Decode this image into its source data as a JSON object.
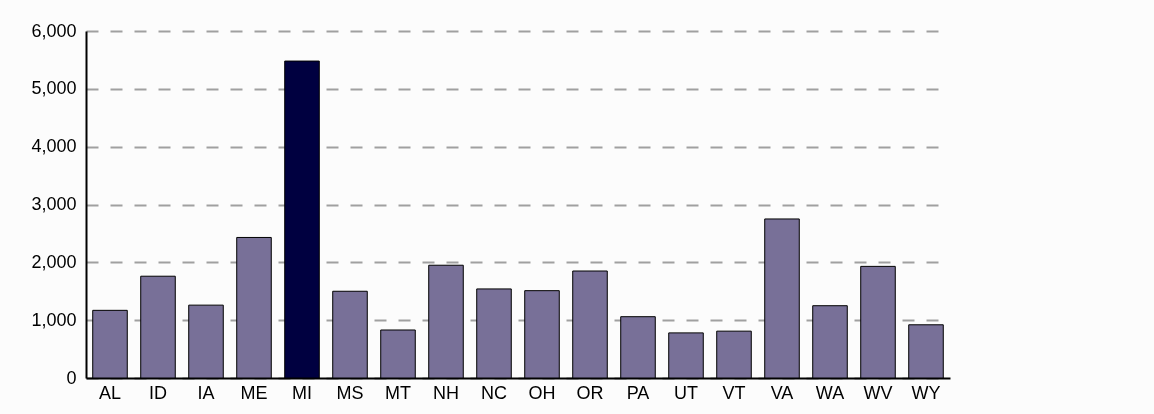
{
  "chart_data": {
    "type": "bar",
    "categories": [
      "AL",
      "ID",
      "IA",
      "ME",
      "MI",
      "MS",
      "MT",
      "NH",
      "NC",
      "OH",
      "OR",
      "PA",
      "UT",
      "VT",
      "VA",
      "WA",
      "WV",
      "WY"
    ],
    "values": [
      1170,
      1760,
      1260,
      2430,
      5480,
      1500,
      830,
      1950,
      1540,
      1510,
      1850,
      1060,
      780,
      810,
      2750,
      1250,
      1930,
      920
    ],
    "colors": [
      "#787098",
      "#787098",
      "#787098",
      "#787098",
      "#000040",
      "#787098",
      "#787098",
      "#787098",
      "#787098",
      "#787098",
      "#787098",
      "#787098",
      "#787098",
      "#787098",
      "#787098",
      "#787098",
      "#787098",
      "#787098"
    ],
    "ylim": [
      0,
      6000
    ],
    "yticks": [
      {
        "value": 0,
        "label": "0"
      },
      {
        "value": 1000,
        "label": "1,000"
      },
      {
        "value": 2000,
        "label": "2,000"
      },
      {
        "value": 3000,
        "label": "3,000"
      },
      {
        "value": 4000,
        "label": "4,000"
      },
      {
        "value": 5000,
        "label": "5,000"
      },
      {
        "value": 6000,
        "label": "6,000"
      }
    ],
    "grid": "y"
  }
}
